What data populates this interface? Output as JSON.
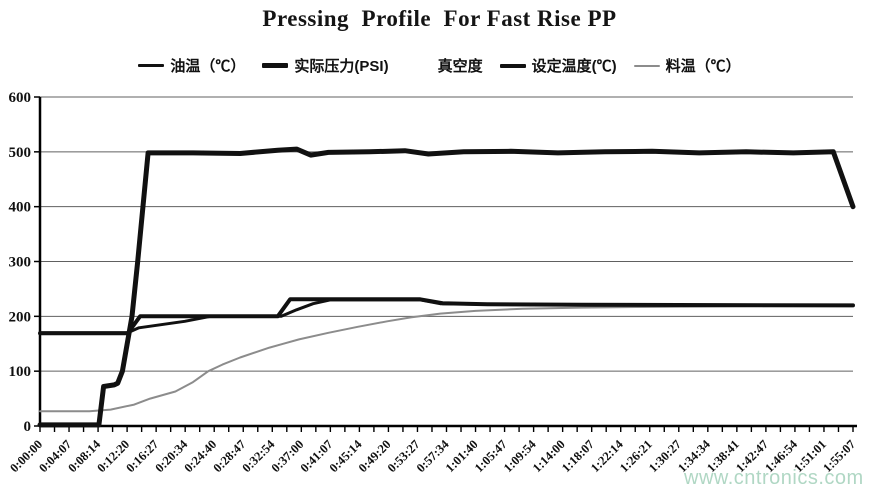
{
  "watermark": {
    "text": "www.cntronics.com"
  },
  "colors": {
    "axis": "#000000",
    "grid": "#606060",
    "line_black": "#111111",
    "line_gray": "#8c8c8c",
    "watermark": "#a8d3be",
    "background": "#ffffff"
  },
  "chart_data": {
    "type": "line",
    "title": "Pressing  Profile  For Fast Rise PP",
    "xlabel": "",
    "ylabel": "",
    "ylim": [
      0,
      600
    ],
    "yticks": [
      0,
      100,
      200,
      300,
      400,
      500,
      600
    ],
    "grid": "horizontal",
    "legend_position": "top",
    "x_time_max_seconds": 6907,
    "x_minor_tick_count": 57,
    "x_labels": [
      "0:00:00",
      "0:04:07",
      "0:08:14",
      "0:12:20",
      "0:16:27",
      "0:20:34",
      "0:24:40",
      "0:28:47",
      "0:32:54",
      "0:37:00",
      "0:41:07",
      "0:45:14",
      "0:49:20",
      "0:53:27",
      "0:57:34",
      "1:01:40",
      "1:05:47",
      "1:09:54",
      "1:14:00",
      "1:18:07",
      "1:22:14",
      "1:26:21",
      "1:30:27",
      "1:34:34",
      "1:38:41",
      "1:42:47",
      "1:46:54",
      "1:51:01",
      "1:55:07"
    ],
    "series": [
      {
        "name": "油温（℃）",
        "color": "#111111",
        "line_width": 3,
        "visible_in_plot": true,
        "points": [
          [
            0,
            170
          ],
          [
            745,
            170
          ],
          [
            840,
            179
          ],
          [
            1230,
            191
          ],
          [
            1450,
            200
          ],
          [
            2050,
            200
          ],
          [
            2180,
            212
          ],
          [
            2320,
            223
          ],
          [
            2465,
            230
          ],
          [
            3230,
            230
          ],
          [
            3400,
            223
          ],
          [
            3800,
            222
          ],
          [
            4600,
            221
          ],
          [
            6907,
            220
          ]
        ]
      },
      {
        "name": "实际压力(PSI)",
        "color": "#111111",
        "line_width": 5,
        "visible_in_plot": true,
        "points": [
          [
            0,
            2
          ],
          [
            500,
            2
          ],
          [
            540,
            72
          ],
          [
            630,
            75
          ],
          [
            660,
            78
          ],
          [
            700,
            100
          ],
          [
            782,
            200
          ],
          [
            830,
            300
          ],
          [
            918,
            498
          ],
          [
            1300,
            498
          ],
          [
            1700,
            497
          ],
          [
            2020,
            503
          ],
          [
            2180,
            505
          ],
          [
            2300,
            494
          ],
          [
            2450,
            499
          ],
          [
            2800,
            500
          ],
          [
            3100,
            502
          ],
          [
            3300,
            496
          ],
          [
            3600,
            500
          ],
          [
            4000,
            501
          ],
          [
            4400,
            498
          ],
          [
            4800,
            500
          ],
          [
            5200,
            501
          ],
          [
            5600,
            498
          ],
          [
            6000,
            500
          ],
          [
            6400,
            498
          ],
          [
            6740,
            500
          ],
          [
            6907,
            400
          ]
        ]
      },
      {
        "name": "真空度",
        "color": "#ffffff",
        "line_width": 3,
        "visible_in_plot": false,
        "points": []
      },
      {
        "name": "设定温度(℃)",
        "color": "#111111",
        "line_width": 4,
        "visible_in_plot": true,
        "points": [
          [
            0,
            169
          ],
          [
            745,
            169
          ],
          [
            850,
            200
          ],
          [
            2020,
            200
          ],
          [
            2125,
            231
          ],
          [
            3230,
            231
          ],
          [
            3420,
            224
          ],
          [
            3800,
            222
          ],
          [
            4600,
            221
          ],
          [
            6907,
            220
          ]
        ]
      },
      {
        "name": "料温（℃）",
        "color": "#8c8c8c",
        "line_width": 2,
        "visible_in_plot": true,
        "points": [
          [
            0,
            27
          ],
          [
            420,
            27
          ],
          [
            600,
            30
          ],
          [
            800,
            39
          ],
          [
            935,
            50
          ],
          [
            1150,
            63
          ],
          [
            1300,
            80
          ],
          [
            1430,
            100
          ],
          [
            1550,
            112
          ],
          [
            1700,
            125
          ],
          [
            1950,
            143
          ],
          [
            2065,
            150
          ],
          [
            2200,
            158
          ],
          [
            2450,
            170
          ],
          [
            2700,
            181
          ],
          [
            2950,
            191
          ],
          [
            3150,
            198
          ],
          [
            3400,
            205
          ],
          [
            3700,
            210
          ],
          [
            4100,
            214
          ],
          [
            4600,
            216
          ],
          [
            5100,
            217
          ],
          [
            5700,
            218
          ],
          [
            6300,
            219
          ],
          [
            6907,
            220
          ]
        ]
      }
    ]
  }
}
